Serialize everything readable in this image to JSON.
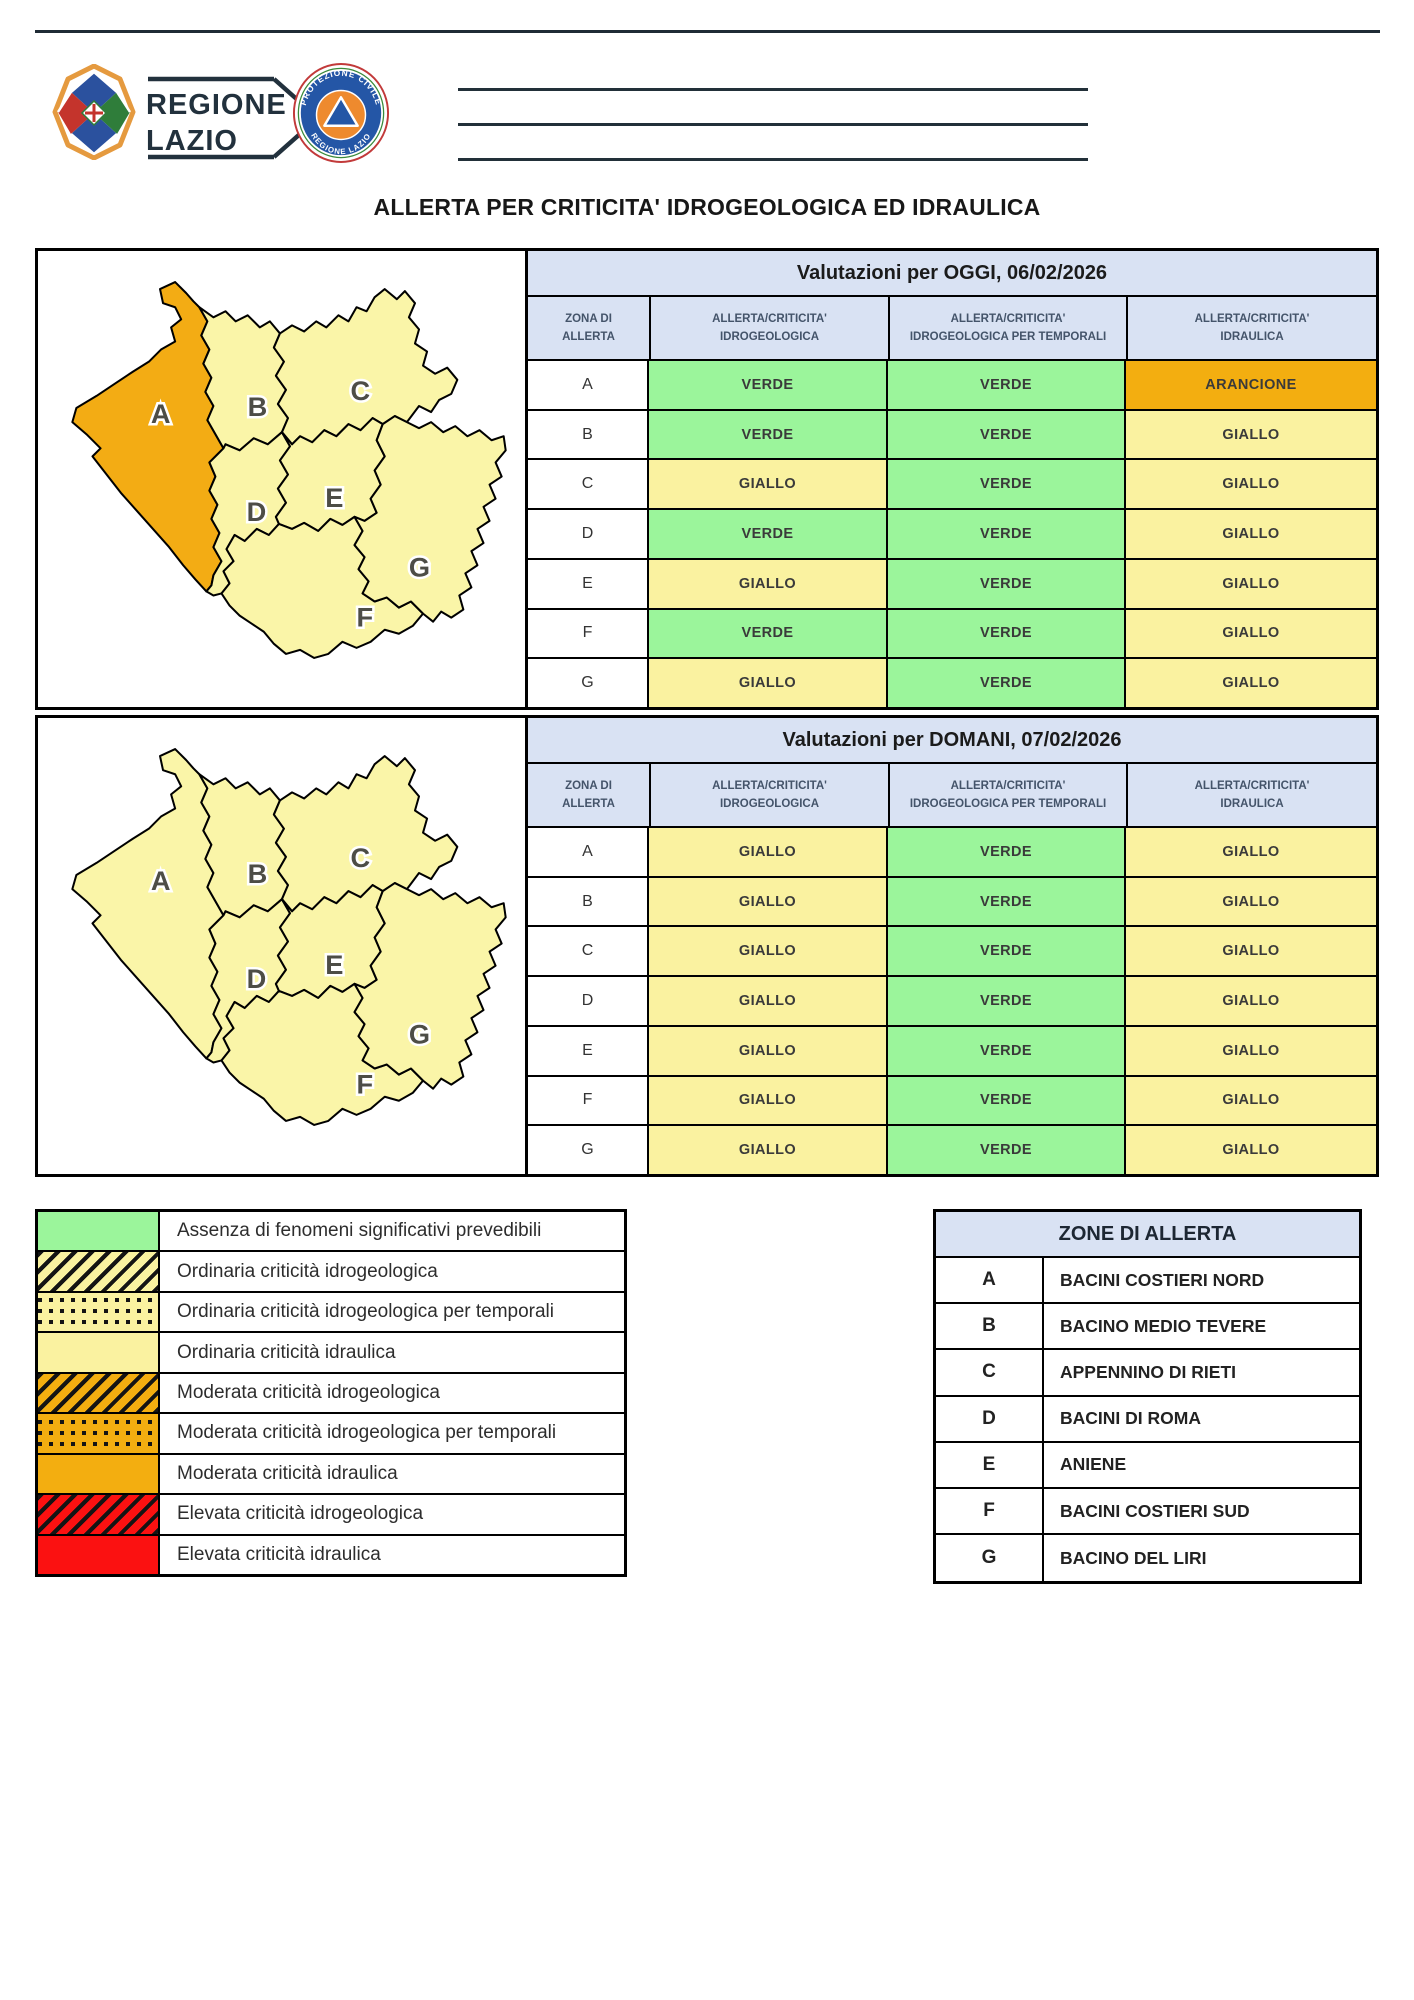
{
  "header": {
    "brand_line1": "REGIONE",
    "brand_line2": "LAZIO",
    "pc_top": "PROTEZIONE CIVILE",
    "pc_bottom": "REGIONE LAZIO"
  },
  "title": "ALLERTA PER CRITICITA' IDROGEOLOGICA ED IDRAULICA",
  "colors": {
    "verde": "#9BF59B",
    "giallo": "#FAF2A0",
    "arancione": "#F3AE10",
    "rosso": "#FB1111",
    "header_blue": "#D9E2F3",
    "map_giallo": "#FAF5A8",
    "map_arancione": "#F3AC14"
  },
  "tables": [
    {
      "title": "Valutazioni per OGGI, 06/02/2026",
      "columns": [
        "ZONA DI\nALLERTA",
        "ALLERTA/CRITICITA'\nIDROGEOLOGICA",
        "ALLERTA/CRITICITA'\nIDROGEOLOGICA PER TEMPORALI",
        "ALLERTA/CRITICITA'\nIDRAULICA"
      ],
      "rows": [
        {
          "zone": "A",
          "idro": "VERDE",
          "temporali": "VERDE",
          "idraulica": "ARANCIONE"
        },
        {
          "zone": "B",
          "idro": "VERDE",
          "temporali": "VERDE",
          "idraulica": "GIALLO"
        },
        {
          "zone": "C",
          "idro": "GIALLO",
          "temporali": "VERDE",
          "idraulica": "GIALLO"
        },
        {
          "zone": "D",
          "idro": "VERDE",
          "temporali": "VERDE",
          "idraulica": "GIALLO"
        },
        {
          "zone": "E",
          "idro": "GIALLO",
          "temporali": "VERDE",
          "idraulica": "GIALLO"
        },
        {
          "zone": "F",
          "idro": "VERDE",
          "temporali": "VERDE",
          "idraulica": "GIALLO"
        },
        {
          "zone": "G",
          "idro": "GIALLO",
          "temporali": "VERDE",
          "idraulica": "GIALLO"
        }
      ],
      "map_zone_colors": {
        "A": "map_arancione",
        "B": "map_giallo",
        "C": "map_giallo",
        "D": "map_giallo",
        "E": "map_giallo",
        "F": "map_giallo",
        "G": "map_giallo"
      }
    },
    {
      "title": "Valutazioni per DOMANI, 07/02/2026",
      "columns": [
        "ZONA DI\nALLERTA",
        "ALLERTA/CRITICITA'\nIDROGEOLOGICA",
        "ALLERTA/CRITICITA'\nIDROGEOLOGICA PER TEMPORALI",
        "ALLERTA/CRITICITA'\nIDRAULICA"
      ],
      "rows": [
        {
          "zone": "A",
          "idro": "GIALLO",
          "temporali": "VERDE",
          "idraulica": "GIALLO"
        },
        {
          "zone": "B",
          "idro": "GIALLO",
          "temporali": "VERDE",
          "idraulica": "GIALLO"
        },
        {
          "zone": "C",
          "idro": "GIALLO",
          "temporali": "VERDE",
          "idraulica": "GIALLO"
        },
        {
          "zone": "D",
          "idro": "GIALLO",
          "temporali": "VERDE",
          "idraulica": "GIALLO"
        },
        {
          "zone": "E",
          "idro": "GIALLO",
          "temporali": "VERDE",
          "idraulica": "GIALLO"
        },
        {
          "zone": "F",
          "idro": "GIALLO",
          "temporali": "VERDE",
          "idraulica": "GIALLO"
        },
        {
          "zone": "G",
          "idro": "GIALLO",
          "temporali": "VERDE",
          "idraulica": "GIALLO"
        }
      ],
      "map_zone_colors": {
        "A": "map_giallo",
        "B": "map_giallo",
        "C": "map_giallo",
        "D": "map_giallo",
        "E": "map_giallo",
        "F": "map_giallo",
        "G": "map_giallo"
      }
    }
  ],
  "map": {
    "labels": [
      "A",
      "B",
      "C",
      "D",
      "E",
      "F",
      "G"
    ]
  },
  "legend": [
    {
      "pattern": "solid",
      "color": "verde",
      "label": "Assenza di fenomeni significativi prevedibili"
    },
    {
      "pattern": "stripes",
      "color": "giallo",
      "label": "Ordinaria criticità idrogeologica"
    },
    {
      "pattern": "dots",
      "color": "giallo",
      "label": "Ordinaria criticità idrogeologica per temporali"
    },
    {
      "pattern": "solid",
      "color": "giallo",
      "label": "Ordinaria criticità idraulica"
    },
    {
      "pattern": "stripes",
      "color": "arancione",
      "label": "Moderata criticità idrogeologica"
    },
    {
      "pattern": "dots",
      "color": "arancione",
      "label": "Moderata criticità idrogeologica per temporali"
    },
    {
      "pattern": "solid",
      "color": "arancione",
      "label": "Moderata criticità idraulica"
    },
    {
      "pattern": "stripes",
      "color": "rosso",
      "label": "Elevata criticità idrogeologica"
    },
    {
      "pattern": "solid",
      "color": "rosso",
      "label": "Elevata criticità idraulica"
    }
  ],
  "zones_table": {
    "title": "ZONE DI ALLERTA",
    "rows": [
      {
        "letter": "A",
        "name": "BACINI COSTIERI NORD"
      },
      {
        "letter": "B",
        "name": "BACINO MEDIO TEVERE"
      },
      {
        "letter": "C",
        "name": "APPENNINO DI RIETI"
      },
      {
        "letter": "D",
        "name": "BACINI DI ROMA"
      },
      {
        "letter": "E",
        "name": "ANIENE"
      },
      {
        "letter": "F",
        "name": "BACINI COSTIERI SUD"
      },
      {
        "letter": "G",
        "name": "BACINO DEL LIRI"
      }
    ]
  }
}
